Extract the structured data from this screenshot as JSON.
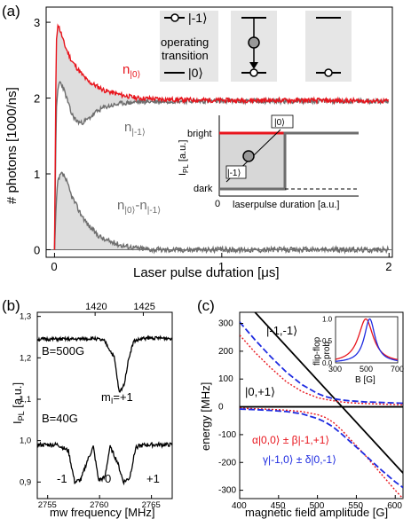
{
  "chart_data": [
    {
      "panel": "(a)",
      "type": "line",
      "xlabel": "Laser pulse duration [μs]",
      "ylabel": "# photons [1000/ns]",
      "xlim": [
        -0.05,
        2.02
      ],
      "ylim": [
        -0.1,
        3.2
      ],
      "xticks": [
        "0",
        "1",
        "2"
      ],
      "yticks": [
        "0",
        "1",
        "2",
        "3"
      ],
      "series": [
        {
          "name": "n|0⟩",
          "color": "#e8141c",
          "x": [
            0.0,
            0.01,
            0.02,
            0.04,
            0.06,
            0.08,
            0.1,
            0.15,
            0.2,
            0.3,
            0.4,
            0.5,
            0.7,
            1.0,
            1.5,
            2.0
          ],
          "y": [
            0.0,
            2.7,
            2.98,
            2.85,
            2.7,
            2.6,
            2.5,
            2.35,
            2.22,
            2.1,
            2.04,
            2.0,
            1.98,
            1.97,
            1.97,
            1.96
          ]
        },
        {
          "name": "n|-1⟩",
          "color": "#6e6e6e",
          "x": [
            0.0,
            0.01,
            0.02,
            0.03,
            0.05,
            0.08,
            0.1,
            0.13,
            0.16,
            0.2,
            0.25,
            0.3,
            0.4,
            0.5,
            0.7,
            1.0,
            1.5,
            2.0
          ],
          "y": [
            0.0,
            1.8,
            2.1,
            2.22,
            2.15,
            1.95,
            1.8,
            1.7,
            1.67,
            1.72,
            1.82,
            1.88,
            1.93,
            1.95,
            1.96,
            1.96,
            1.96,
            1.96
          ]
        },
        {
          "name": "n|0⟩-n|-1⟩",
          "color": "#6e6e6e",
          "x": [
            0.0,
            0.01,
            0.02,
            0.04,
            0.06,
            0.08,
            0.1,
            0.15,
            0.2,
            0.25,
            0.3,
            0.4,
            0.5,
            0.6,
            1.0,
            1.5,
            2.0
          ],
          "y": [
            0.0,
            0.6,
            0.9,
            1.0,
            0.97,
            0.85,
            0.72,
            0.5,
            0.33,
            0.21,
            0.13,
            0.06,
            0.02,
            0.0,
            0.0,
            0.0,
            0.0
          ]
        }
      ],
      "labels": {
        "n0": "n",
        "n0_sub": "|0⟩",
        "nm1": "n",
        "nm1_sub": "|-1⟩",
        "diff_a": "n",
        "diff_a_sub": "|0⟩",
        "diff_mid": "-n",
        "diff_b_sub": "|-1⟩"
      },
      "level_scheme": {
        "ket_m1": "|-1⟩",
        "ket_0": "|0⟩",
        "operating_line1": "operating",
        "operating_line2": "transition"
      },
      "inset": {
        "ylabel": "I",
        "ylabel_sub": "PL",
        "ylabel_unit": " [a.u.]",
        "xlabel": "laserpulse duration [a.u.]",
        "bright": "bright",
        "dark": "dark",
        "zero": "0",
        "ket_0": "|0⟩",
        "ket_m1": "|-1⟩"
      }
    },
    {
      "panel": "(b)",
      "type": "line",
      "xlabel": "mw frequency [MHz]",
      "ylabel": "I",
      "ylabel_sub": "PL",
      "ylabel_unit": " [a.u.]",
      "xlim": [
        2754,
        2767
      ],
      "ylim": [
        0.86,
        1.31
      ],
      "xticks": [
        "2755",
        "2760",
        "2765"
      ],
      "top_xlim": [
        1414,
        1428
      ],
      "top_xticks": [
        "1420",
        "1425"
      ],
      "yticks": [
        "0,9",
        "1,0",
        "1,1",
        "1,2",
        "1,3"
      ],
      "series": [
        {
          "name": "B=500G",
          "color": "#000000",
          "x_top": [
            1414,
            1418,
            1420,
            1421,
            1422,
            1422.5,
            1423,
            1423.5,
            1424,
            1425,
            1426,
            1428
          ],
          "y": [
            1.245,
            1.245,
            1.247,
            1.24,
            1.2,
            1.115,
            1.135,
            1.2,
            1.24,
            1.247,
            1.248,
            1.247
          ]
        },
        {
          "name": "B=40G",
          "color": "#000000",
          "x": [
            2754,
            2756,
            2757,
            2757.6,
            2758.2,
            2758.8,
            2759.4,
            2759.9,
            2760.5,
            2761.0,
            2761.7,
            2762.3,
            2762.9,
            2763.5,
            2764.5,
            2767
          ],
          "y": [
            0.99,
            0.99,
            0.975,
            0.9,
            0.905,
            0.95,
            0.985,
            0.905,
            0.91,
            0.985,
            0.95,
            0.9,
            0.91,
            0.985,
            0.99,
            0.99
          ]
        }
      ],
      "labels": {
        "b500": "B=500G",
        "b40": "B=40G",
        "mi": "m",
        "mi_sub": "I",
        "mi_val": "=+1",
        "dip_m1": "-1",
        "dip_0": "0",
        "dip_p1": "+1"
      }
    },
    {
      "panel": "(c)",
      "type": "line",
      "xlabel": "magnetic field amplitude [G]",
      "ylabel": "energy [MHz]",
      "xlim": [
        400,
        610
      ],
      "ylim": [
        -330,
        340
      ],
      "xticks": [
        "400",
        "450",
        "500",
        "550",
        "600"
      ],
      "yticks": [
        "-300",
        "-200",
        "-100",
        "0",
        "100",
        "200",
        "300"
      ],
      "series": [
        {
          "name": "|-1,-1⟩",
          "color": "#000000",
          "x": [
            400,
            610
          ],
          "y": [
            400,
            -238
          ]
        },
        {
          "name": "|0,+1⟩",
          "color": "#000000",
          "x": [
            400,
            610
          ],
          "y": [
            0,
            0
          ]
        },
        {
          "name": "α|0,0⟩ ± β|-1,+1⟩",
          "color": "#e8141c",
          "x": [
            400,
            420,
            440,
            460,
            480,
            500,
            510,
            520,
            530,
            540,
            560,
            580,
            600,
            610
          ],
          "y": [
            258,
            195,
            140,
            90,
            55,
            33,
            27,
            22,
            18,
            15,
            12,
            10,
            8,
            7
          ]
        },
        {
          "name": "α|0,0⟩ ± β|-1,+1⟩ (lower)",
          "color": "#e8141c",
          "x": [
            400,
            420,
            440,
            460,
            480,
            500,
            510,
            520,
            530,
            540,
            560,
            580,
            600,
            610
          ],
          "y": [
            -5,
            -7,
            -9,
            -12,
            -17,
            -28,
            -38,
            -55,
            -80,
            -110,
            -170,
            -235,
            -300,
            -330
          ]
        },
        {
          "name": "γ|-1,0⟩ ± δ|0,-1⟩",
          "color": "#1e2be0",
          "x": [
            400,
            420,
            440,
            460,
            480,
            500,
            510,
            520,
            530,
            540,
            560,
            580,
            600,
            610
          ],
          "y": [
            305,
            240,
            180,
            125,
            80,
            48,
            37,
            30,
            25,
            22,
            18,
            16,
            14,
            13
          ]
        },
        {
          "name": "γ|-1,0⟩ ± δ|0,-1⟩ (lower)",
          "color": "#1e2be0",
          "x": [
            400,
            420,
            440,
            460,
            480,
            500,
            510,
            520,
            530,
            540,
            560,
            580,
            600,
            610
          ],
          "y": [
            -8,
            -10,
            -13,
            -17,
            -25,
            -42,
            -55,
            -72,
            -95,
            -120,
            -170,
            -222,
            -270,
            -290
          ]
        }
      ],
      "labels": {
        "state_a": "|-1,-1⟩",
        "state_b": "|0,+1⟩",
        "red_formula": "α|0,0⟩ ± β|-1,+1⟩",
        "blue_formula": "γ|-1,0⟩ ± δ|0,-1⟩"
      },
      "inset": {
        "xlabel": "B [G]",
        "ylabel_line1": "flip-flop",
        "ylabel_line2": "prob.",
        "xticks": [
          "300",
          "500",
          "700"
        ],
        "yticks": [
          "0.0",
          "0.5",
          "1.0"
        ],
        "xlim": [
          300,
          700
        ],
        "ylim": [
          0,
          1.05
        ],
        "series": [
          {
            "name": "red",
            "color": "#e8141c",
            "center": 495,
            "width": 58
          },
          {
            "name": "blue",
            "color": "#1e2be0",
            "center": 520,
            "width": 42
          }
        ]
      }
    }
  ],
  "panel_labels": {
    "a": "(a)",
    "b": "(b)",
    "c": "(c)"
  }
}
